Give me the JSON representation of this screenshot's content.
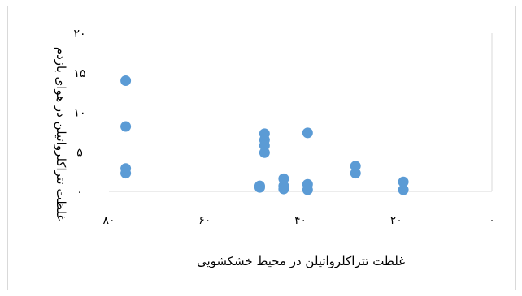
{
  "chart_data": {
    "type": "scatter",
    "title": "",
    "xlabel": "غلظت تتراکلرواتیلن در محیط خشکشویی",
    "ylabel": "غلظت تتراکلرواتیلن در هوای بازدم",
    "xlim": [
      0,
      80
    ],
    "ylim": [
      0,
      20
    ],
    "x_ticks": [
      0,
      20,
      40,
      60,
      80
    ],
    "y_ticks": [
      0,
      5,
      10,
      15,
      20
    ],
    "x_tick_labels": [
      "۰",
      "۲۰",
      "۴۰",
      "۶۰",
      "۸۰"
    ],
    "y_tick_labels": [
      "۰",
      "۵",
      "۱۰",
      "۱۵",
      "۲۰"
    ],
    "grid": false,
    "legend": "none",
    "marker_color": "#5b9bd5",
    "series": [
      {
        "points": [
          {
            "x": 18.5,
            "y": 0.2
          },
          {
            "x": 18.5,
            "y": 1.2
          },
          {
            "x": 28.5,
            "y": 3.2
          },
          {
            "x": 28.5,
            "y": 2.3
          },
          {
            "x": 38.5,
            "y": 7.4
          },
          {
            "x": 38.5,
            "y": 0.9
          },
          {
            "x": 38.5,
            "y": 0.2
          },
          {
            "x": 43.5,
            "y": 1.6
          },
          {
            "x": 43.5,
            "y": 0.7
          },
          {
            "x": 43.5,
            "y": 0.3
          },
          {
            "x": 47.5,
            "y": 7.3
          },
          {
            "x": 47.5,
            "y": 6.5
          },
          {
            "x": 47.5,
            "y": 5.8
          },
          {
            "x": 47.5,
            "y": 4.9
          },
          {
            "x": 48.5,
            "y": 0.7
          },
          {
            "x": 48.5,
            "y": 0.5
          },
          {
            "x": 76.5,
            "y": 14.0
          },
          {
            "x": 76.5,
            "y": 8.2
          },
          {
            "x": 76.5,
            "y": 2.9
          },
          {
            "x": 76.5,
            "y": 2.3
          }
        ]
      }
    ]
  }
}
